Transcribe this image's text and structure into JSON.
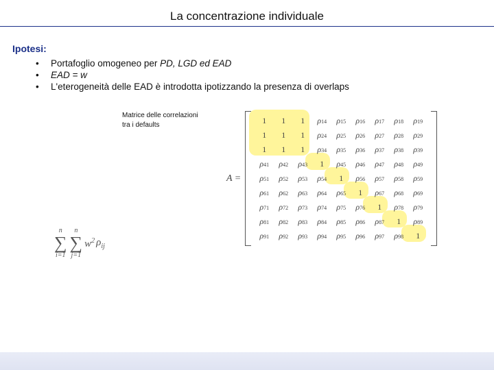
{
  "title": "La concentrazione individuale",
  "hypotheses_label": "Ipotesi:",
  "bullets": [
    {
      "pre": "Portafoglio omogeneo per ",
      "it": "PD, LGD ed EAD"
    },
    {
      "pre": "",
      "it": "EAD = w"
    },
    {
      "pre": "L'eterogeneità delle EAD è introdotta ipotizzando la presenza di overlaps",
      "it": ""
    }
  ],
  "caption_l1": "Matrice delle correlazioni",
  "caption_l2": "tra i defaults",
  "formula": {
    "sum1_top": "n",
    "sum1_bot": "i=1",
    "sum2_top": "n",
    "sum2_bot": "j=1",
    "body_w": "w",
    "body_exp": "2",
    "rho": "ρ",
    "rho_sub": "ij"
  },
  "matrix": {
    "A": "A =",
    "n": 9,
    "highlight": {
      "top_block": {
        "color": "#fff27a",
        "opacity": 0.75
      },
      "diag": {
        "color": "#fff27a",
        "opacity": 0.75
      }
    },
    "colors": {
      "text": "#444444"
    }
  }
}
